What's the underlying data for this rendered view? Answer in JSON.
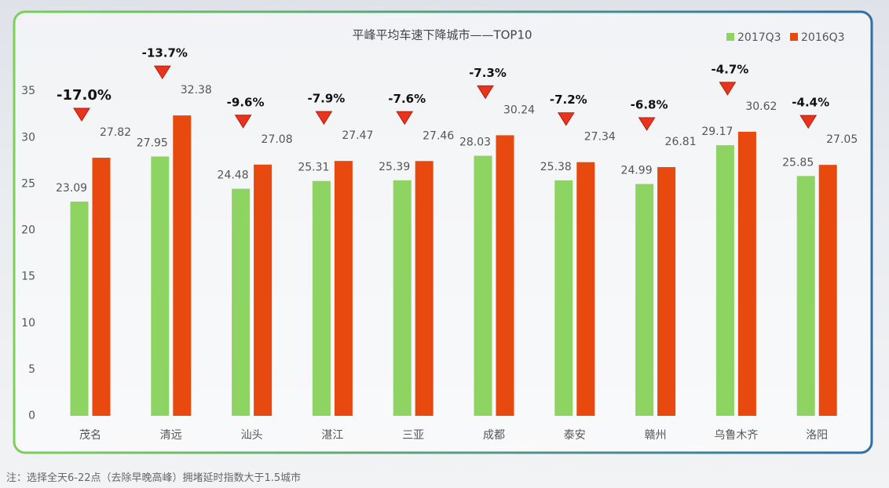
{
  "chart_data": {
    "type": "bar",
    "title": "平峰平均车速下降城市——TOP10",
    "categories": [
      "茂名",
      "清远",
      "汕头",
      "湛江",
      "三亚",
      "成都",
      "泰安",
      "赣州",
      "乌鲁木齐",
      "洛阳"
    ],
    "series": [
      {
        "name": "2017Q3",
        "color": "#8ed462",
        "values": [
          23.09,
          27.95,
          24.48,
          25.31,
          25.39,
          28.03,
          25.38,
          24.99,
          29.17,
          25.85
        ]
      },
      {
        "name": "2016Q3",
        "color": "#e8490f",
        "values": [
          27.82,
          32.38,
          27.08,
          27.47,
          27.46,
          30.24,
          27.34,
          26.81,
          30.62,
          27.05
        ]
      }
    ],
    "change": {
      "color": "#e8341c",
      "values": [
        -17.0,
        -13.7,
        -9.6,
        -7.9,
        -7.6,
        -7.3,
        -7.2,
        -6.8,
        -4.7,
        -4.4
      ],
      "value_labels": [
        "-17.0%",
        "-13.7%",
        "-9.6%",
        "-7.9%",
        "-7.6%",
        "-7.3%",
        "-7.2%",
        "-6.8%",
        "-4.7%",
        "-4.4%"
      ]
    },
    "ylim": [
      0,
      40
    ],
    "yticks": [
      0,
      5,
      10,
      15,
      20,
      25,
      30,
      35
    ],
    "legend": "top-right"
  },
  "footnote": "注：选择全天6-22点（去除早晚高峰）拥堵延时指数大于1.5城市"
}
